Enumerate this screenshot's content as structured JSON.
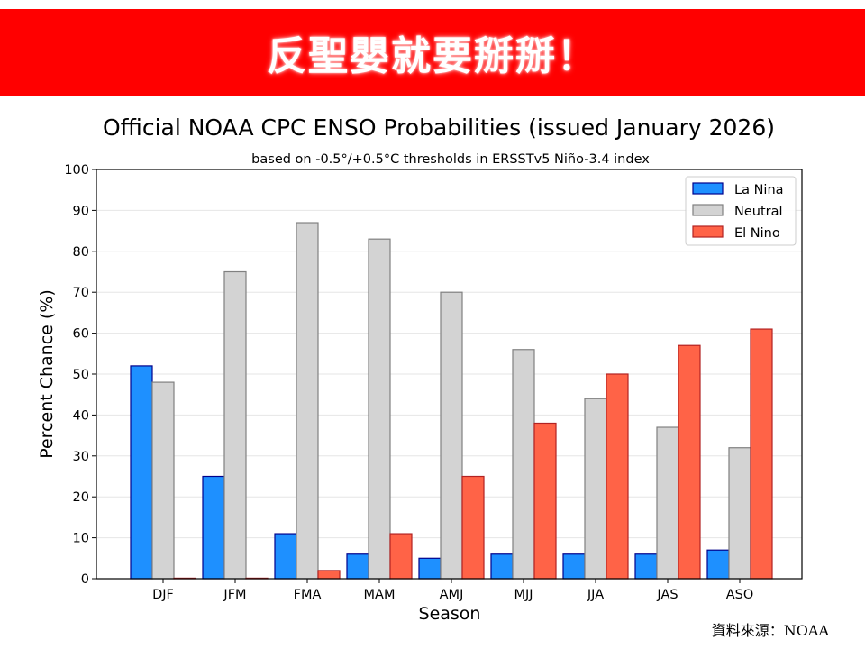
{
  "banner": {
    "text": "反聖嬰就要掰掰！",
    "color": "#ff0000"
  },
  "source": "資料來源：NOAA",
  "chart_data": {
    "type": "bar",
    "title": "Official NOAA CPC ENSO Probabilities (issued January 2026)",
    "subtitle": "based on -0.5°/+0.5°C thresholds in ERSSTv5 Niño-3.4 index",
    "xlabel": "Season",
    "ylabel": "Percent Chance (%)",
    "ylim": [
      0,
      100
    ],
    "yticks": [
      0,
      10,
      20,
      30,
      40,
      50,
      60,
      70,
      80,
      90,
      100
    ],
    "grid": true,
    "legend_placement": "top-right",
    "categories": [
      "DJF",
      "JFM",
      "FMA",
      "MAM",
      "AMJ",
      "MJJ",
      "JJA",
      "JAS",
      "ASO"
    ],
    "series": [
      {
        "name": "La Nina",
        "color": "#1e90ff",
        "edge": "#00008b",
        "values": [
          52,
          25,
          11,
          6,
          5,
          6,
          6,
          6,
          7
        ]
      },
      {
        "name": "Neutral",
        "color": "#d3d3d3",
        "edge": "#808080",
        "values": [
          48,
          75,
          87,
          83,
          70,
          56,
          44,
          37,
          32
        ]
      },
      {
        "name": "El Nino",
        "color": "#ff6347",
        "edge": "#b22222",
        "values": [
          0,
          0,
          2,
          11,
          25,
          38,
          50,
          57,
          61
        ]
      }
    ]
  }
}
